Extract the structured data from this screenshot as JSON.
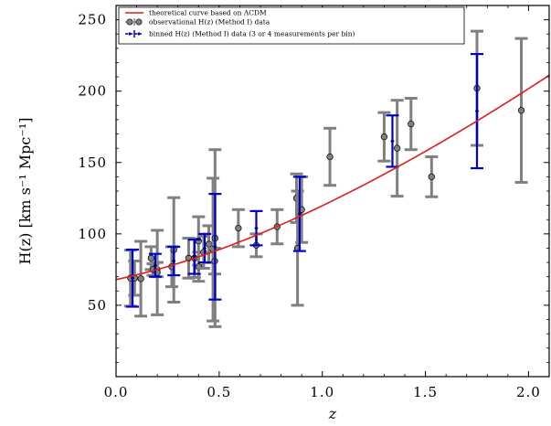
{
  "chart_data": {
    "type": "scatter",
    "xlabel": "z",
    "ylabel": "H(z) [km s⁻¹ Mpc⁻¹]",
    "xlim": [
      0.0,
      2.1
    ],
    "ylim": [
      0,
      260
    ],
    "xticks": [
      0.0,
      0.5,
      1.0,
      1.5,
      2.0
    ],
    "yticks": [
      50,
      100,
      150,
      200,
      250
    ],
    "xtick_labels": [
      "0.0",
      "0.5",
      "1.0",
      "1.5",
      "2.0"
    ],
    "ytick_labels": [
      "50",
      "100",
      "150",
      "200",
      "250"
    ],
    "legend_position": "top-left",
    "series": [
      {
        "name": "theoretical curve based on ΛCDM",
        "kind": "line",
        "color": "#e41a1c",
        "H0": 68.0,
        "Om": 0.3
      },
      {
        "name": "observational H(z) (Method I) data",
        "kind": "errorbar",
        "color": "#808080",
        "points": [
          {
            "x": 0.07,
            "y": 69,
            "err": 19.6
          },
          {
            "x": 0.09,
            "y": 69,
            "err": 12
          },
          {
            "x": 0.12,
            "y": 68.6,
            "err": 26.2
          },
          {
            "x": 0.17,
            "y": 83,
            "err": 8
          },
          {
            "x": 0.179,
            "y": 75,
            "err": 4
          },
          {
            "x": 0.199,
            "y": 75,
            "err": 5
          },
          {
            "x": 0.2,
            "y": 72.9,
            "err": 29.6
          },
          {
            "x": 0.27,
            "y": 77,
            "err": 14
          },
          {
            "x": 0.28,
            "y": 88.8,
            "err": 36.6
          },
          {
            "x": 0.352,
            "y": 83,
            "err": 14
          },
          {
            "x": 0.3802,
            "y": 83,
            "err": 13.5
          },
          {
            "x": 0.4,
            "y": 95,
            "err": 17
          },
          {
            "x": 0.4004,
            "y": 77,
            "err": 10.2
          },
          {
            "x": 0.4247,
            "y": 87.1,
            "err": 11.2
          },
          {
            "x": 0.4497,
            "y": 92.8,
            "err": 12.9
          },
          {
            "x": 0.47,
            "y": 89,
            "err": 50
          },
          {
            "x": 0.4783,
            "y": 80.9,
            "err": 9
          },
          {
            "x": 0.48,
            "y": 97,
            "err": 62
          },
          {
            "x": 0.593,
            "y": 104,
            "err": 13
          },
          {
            "x": 0.68,
            "y": 92,
            "err": 8
          },
          {
            "x": 0.781,
            "y": 105,
            "err": 12
          },
          {
            "x": 0.875,
            "y": 125,
            "err": 17
          },
          {
            "x": 0.88,
            "y": 90,
            "err": 40
          },
          {
            "x": 0.9,
            "y": 117,
            "err": 23
          },
          {
            "x": 1.037,
            "y": 154,
            "err": 20
          },
          {
            "x": 1.3,
            "y": 168,
            "err": 17
          },
          {
            "x": 1.363,
            "y": 160,
            "err": 33.6
          },
          {
            "x": 1.43,
            "y": 177,
            "err": 18
          },
          {
            "x": 1.53,
            "y": 140,
            "err": 14
          },
          {
            "x": 1.75,
            "y": 202,
            "err": 40
          },
          {
            "x": 1.965,
            "y": 186.5,
            "err": 50.4
          }
        ]
      },
      {
        "name": "binned H(z) (Method I) data (3 or 4 measurements per bin)",
        "kind": "errorbar",
        "color": "#0000cc",
        "points": [
          {
            "x": 0.08,
            "y": 69,
            "err": 20
          },
          {
            "x": 0.19,
            "y": 78,
            "err": 8
          },
          {
            "x": 0.28,
            "y": 81,
            "err": 10
          },
          {
            "x": 0.38,
            "y": 84,
            "err": 12
          },
          {
            "x": 0.43,
            "y": 90,
            "err": 10
          },
          {
            "x": 0.48,
            "y": 91,
            "err": 37
          },
          {
            "x": 0.68,
            "y": 104,
            "err": 12
          },
          {
            "x": 0.89,
            "y": 114,
            "err": 26
          },
          {
            "x": 1.34,
            "y": 165,
            "err": 18
          },
          {
            "x": 1.75,
            "y": 186,
            "err": 40
          }
        ]
      }
    ]
  }
}
